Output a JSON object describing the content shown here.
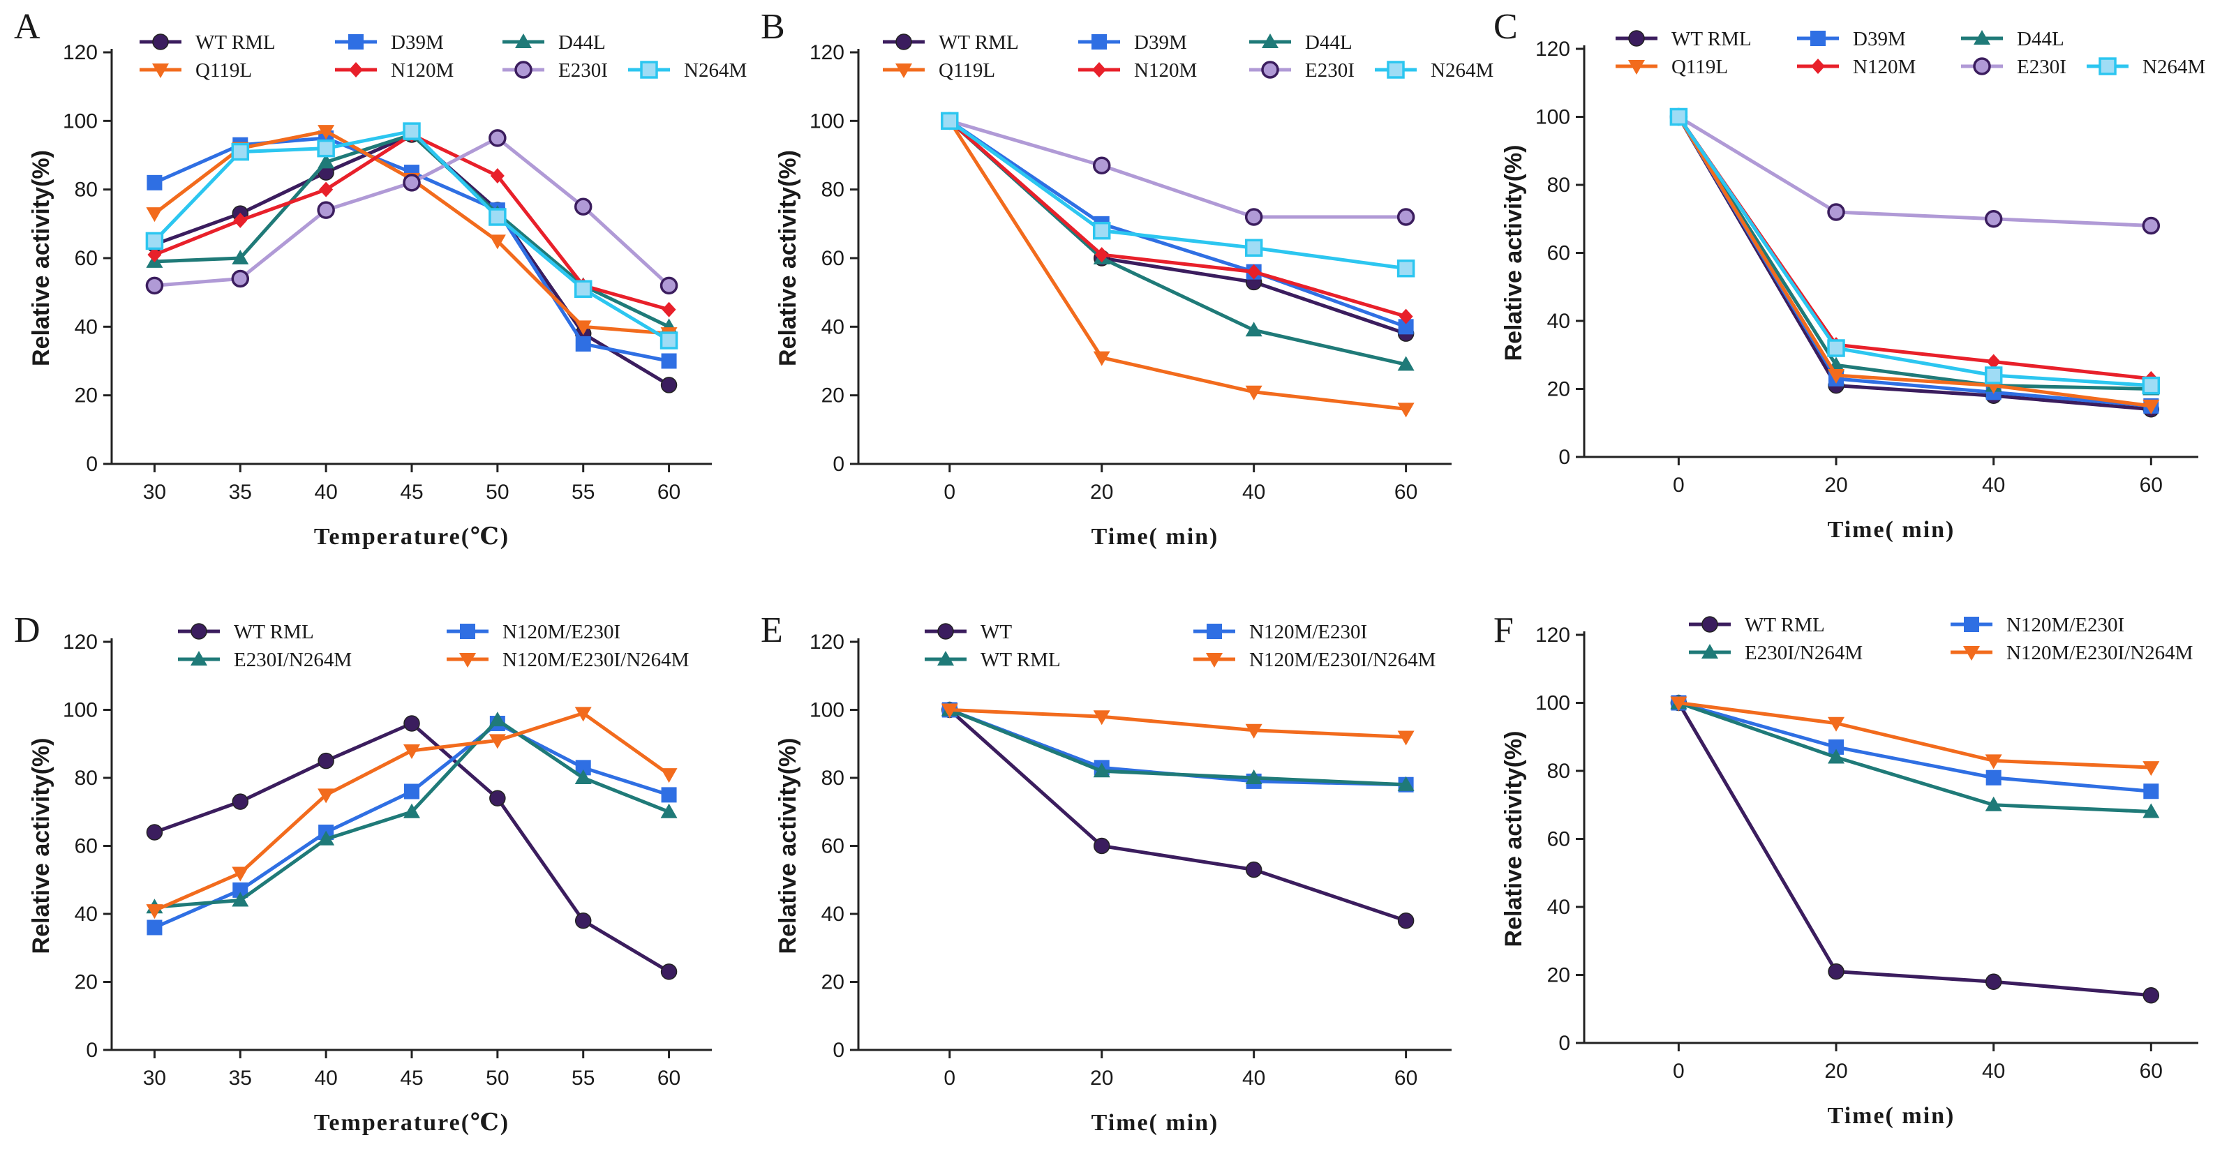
{
  "colors": {
    "WT RML": "#3b1d5e",
    "WT": "#3b1d5e",
    "D39M": "#2f6fe3",
    "D44L": "#1f7a78",
    "Q119L": "#f26b1d",
    "N120M": "#e8202a",
    "E230I": "#b09ad6",
    "N264M": "#2cc6f0",
    "N120M/E230I": "#2f6fe3",
    "E230I/N264M": "#1f7a78",
    "N120M/E230I/N264M": "#f26b1d"
  },
  "chart_data": [
    {
      "panel": "A",
      "type": "line",
      "xlabel": "Temperature(℃)",
      "ylabel": "Relative activity(%)",
      "x": [
        30,
        35,
        40,
        45,
        50,
        55,
        60
      ],
      "xticks": [
        "30",
        "35",
        "40",
        "45",
        "50",
        "55",
        "60"
      ],
      "ylim": [
        0,
        120
      ],
      "yticks": [
        "0",
        "20",
        "40",
        "60",
        "80",
        "100",
        "120"
      ],
      "legend": [
        [
          "WT RML",
          "D39M",
          "D44L"
        ],
        [
          "Q119L",
          "N120M",
          "E230I",
          "N264M"
        ]
      ],
      "series": [
        {
          "name": "WT RML",
          "marker": "circle",
          "values": [
            64,
            73,
            85,
            96,
            74,
            38,
            23
          ]
        },
        {
          "name": "D39M",
          "marker": "square",
          "values": [
            82,
            93,
            95,
            85,
            74,
            35,
            30
          ]
        },
        {
          "name": "D44L",
          "marker": "triangle",
          "values": [
            59,
            60,
            88,
            96,
            73,
            52,
            40
          ]
        },
        {
          "name": "Q119L",
          "marker": "tri-down",
          "values": [
            73,
            92,
            97,
            83,
            65,
            40,
            38
          ]
        },
        {
          "name": "N120M",
          "marker": "diamond",
          "values": [
            61,
            71,
            80,
            96,
            84,
            52,
            45
          ]
        },
        {
          "name": "E230I",
          "marker": "circle-open",
          "values": [
            52,
            54,
            74,
            82,
            95,
            75,
            52
          ]
        },
        {
          "name": "N264M",
          "marker": "square-open",
          "values": [
            65,
            91,
            92,
            97,
            72,
            51,
            36
          ]
        }
      ]
    },
    {
      "panel": "B",
      "type": "line",
      "xlabel": "Time( min)",
      "ylabel": "Relative activity(%)",
      "x": [
        0,
        20,
        40,
        60
      ],
      "xticks": [
        "0",
        "20",
        "40",
        "60"
      ],
      "xlim": [
        -12,
        66
      ],
      "ylim": [
        0,
        120
      ],
      "yticks": [
        "0",
        "20",
        "40",
        "60",
        "80",
        "100",
        "120"
      ],
      "legend": [
        [
          "WT RML",
          "D39M",
          "D44L"
        ],
        [
          "Q119L",
          "N120M",
          "E230I",
          "N264M"
        ]
      ],
      "series": [
        {
          "name": "WT RML",
          "marker": "circle",
          "values": [
            100,
            60,
            53,
            38
          ]
        },
        {
          "name": "D39M",
          "marker": "square",
          "values": [
            100,
            70,
            56,
            40
          ]
        },
        {
          "name": "D44L",
          "marker": "triangle",
          "values": [
            100,
            60,
            39,
            29
          ]
        },
        {
          "name": "Q119L",
          "marker": "tri-down",
          "values": [
            100,
            31,
            21,
            16
          ]
        },
        {
          "name": "N120M",
          "marker": "diamond",
          "values": [
            100,
            61,
            56,
            43
          ]
        },
        {
          "name": "E230I",
          "marker": "circle-open",
          "values": [
            100,
            87,
            72,
            72
          ]
        },
        {
          "name": "N264M",
          "marker": "square-open",
          "values": [
            100,
            68,
            63,
            57
          ]
        }
      ]
    },
    {
      "panel": "C",
      "type": "line",
      "xlabel": "Time( min)",
      "ylabel": "Relative activity(%)",
      "x": [
        0,
        20,
        40,
        60
      ],
      "xticks": [
        "0",
        "20",
        "40",
        "60"
      ],
      "xlim": [
        -12,
        66
      ],
      "ylim": [
        0,
        120
      ],
      "yticks": [
        "0",
        "20",
        "40",
        "60",
        "80",
        "100",
        "120"
      ],
      "legend": [
        [
          "WT RML",
          "D39M",
          "D44L"
        ],
        [
          "Q119L",
          "N120M",
          "E230I",
          "N264M"
        ]
      ],
      "series": [
        {
          "name": "WT RML",
          "marker": "circle",
          "values": [
            100,
            21,
            18,
            14
          ]
        },
        {
          "name": "D39M",
          "marker": "square",
          "values": [
            100,
            23,
            19,
            15
          ]
        },
        {
          "name": "D44L",
          "marker": "triangle",
          "values": [
            100,
            27,
            21,
            20
          ]
        },
        {
          "name": "Q119L",
          "marker": "tri-down",
          "values": [
            100,
            24,
            21,
            15
          ]
        },
        {
          "name": "N120M",
          "marker": "diamond",
          "values": [
            100,
            33,
            28,
            23
          ]
        },
        {
          "name": "E230I",
          "marker": "circle-open",
          "values": [
            100,
            72,
            70,
            68
          ]
        },
        {
          "name": "N264M",
          "marker": "square-open",
          "values": [
            100,
            32,
            24,
            21
          ]
        }
      ]
    },
    {
      "panel": "D",
      "type": "line",
      "xlabel": "Temperature(℃)",
      "ylabel": "Relative activity(%)",
      "x": [
        30,
        35,
        40,
        45,
        50,
        55,
        60
      ],
      "xticks": [
        "30",
        "35",
        "40",
        "45",
        "50",
        "55",
        "60"
      ],
      "ylim": [
        0,
        120
      ],
      "yticks": [
        "0",
        "20",
        "40",
        "60",
        "80",
        "100",
        "120"
      ],
      "legend": [
        [
          "WT RML",
          "N120M/E230I"
        ],
        [
          "E230I/N264M",
          "N120M/E230I/N264M"
        ]
      ],
      "series": [
        {
          "name": "WT RML",
          "marker": "circle",
          "values": [
            64,
            73,
            85,
            96,
            74,
            38,
            23
          ]
        },
        {
          "name": "N120M/E230I",
          "marker": "square",
          "values": [
            36,
            47,
            64,
            76,
            96,
            83,
            75
          ]
        },
        {
          "name": "E230I/N264M",
          "marker": "triangle",
          "values": [
            42,
            44,
            62,
            70,
            97,
            80,
            70
          ]
        },
        {
          "name": "N120M/E230I/N264M",
          "marker": "tri-down",
          "values": [
            41,
            52,
            75,
            88,
            91,
            99,
            81
          ]
        }
      ]
    },
    {
      "panel": "E",
      "type": "line",
      "xlabel": "Time( min)",
      "ylabel": "Relative activity(%)",
      "x": [
        0,
        20,
        40,
        60
      ],
      "xticks": [
        "0",
        "20",
        "40",
        "60"
      ],
      "xlim": [
        -12,
        66
      ],
      "ylim": [
        0,
        120
      ],
      "yticks": [
        "0",
        "20",
        "40",
        "60",
        "80",
        "100",
        "120"
      ],
      "legend": [
        [
          "WT",
          "N120M/E230I"
        ],
        [
          "WT RML",
          "N120M/E230I/N264M"
        ]
      ],
      "series": [
        {
          "name": "WT",
          "marker": "circle",
          "values": [
            100,
            60,
            53,
            38
          ]
        },
        {
          "name": "N120M/E230I",
          "marker": "square",
          "values": [
            100,
            83,
            79,
            78
          ]
        },
        {
          "name": "WT RML",
          "marker": "triangle",
          "colorKey": "D44L",
          "values": [
            100,
            82,
            80,
            78
          ]
        },
        {
          "name": "N120M/E230I/N264M",
          "marker": "tri-down",
          "values": [
            100,
            98,
            94,
            92
          ]
        }
      ]
    },
    {
      "panel": "F",
      "type": "line",
      "xlabel": "Time( min)",
      "ylabel": "Relative activity(%)",
      "x": [
        0,
        20,
        40,
        60
      ],
      "xticks": [
        "0",
        "20",
        "40",
        "60"
      ],
      "xlim": [
        -12,
        66
      ],
      "ylim": [
        0,
        120
      ],
      "yticks": [
        "0",
        "20",
        "40",
        "60",
        "80",
        "100",
        "120"
      ],
      "legend": [
        [
          "WT RML",
          "N120M/E230I"
        ],
        [
          "E230I/N264M",
          "N120M/E230I/N264M"
        ]
      ],
      "series": [
        {
          "name": "WT RML",
          "marker": "circle",
          "values": [
            100,
            21,
            18,
            14
          ]
        },
        {
          "name": "N120M/E230I",
          "marker": "square",
          "values": [
            100,
            87,
            78,
            74
          ]
        },
        {
          "name": "E230I/N264M",
          "marker": "triangle",
          "values": [
            100,
            84,
            70,
            68
          ]
        },
        {
          "name": "N120M/E230I/N264M",
          "marker": "tri-down",
          "values": [
            100,
            94,
            83,
            81
          ]
        }
      ]
    }
  ]
}
